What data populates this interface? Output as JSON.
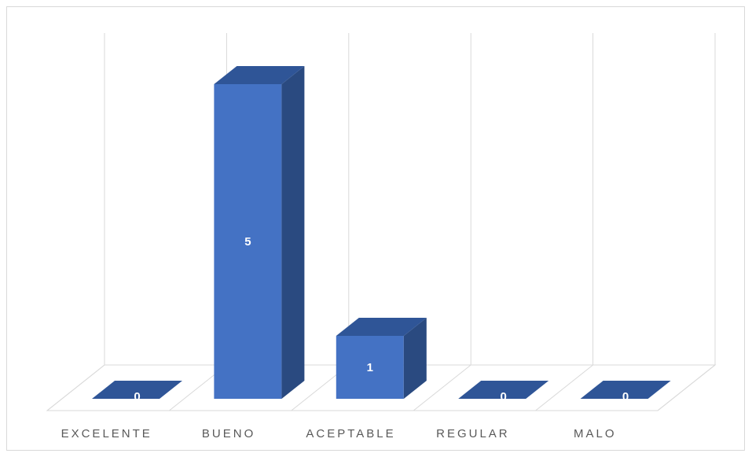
{
  "chart_data": {
    "type": "bar",
    "style": "3d-column",
    "categories": [
      "EXCELENTE",
      "BUENO",
      "ACEPTABLE",
      "REGULAR",
      "MALO"
    ],
    "values": [
      0,
      5,
      1,
      0,
      0
    ],
    "data_labels": [
      "0",
      "5",
      "1",
      "0",
      "0"
    ],
    "title": "",
    "xlabel": "",
    "ylabel": "",
    "ylim": [
      0,
      5.5
    ],
    "grid": true,
    "legend": "none",
    "colors": {
      "front": "#4472c4",
      "side": "#2a4a80",
      "top": "#2f5597",
      "grid": "#d9d9d9",
      "label": "#595959"
    }
  }
}
